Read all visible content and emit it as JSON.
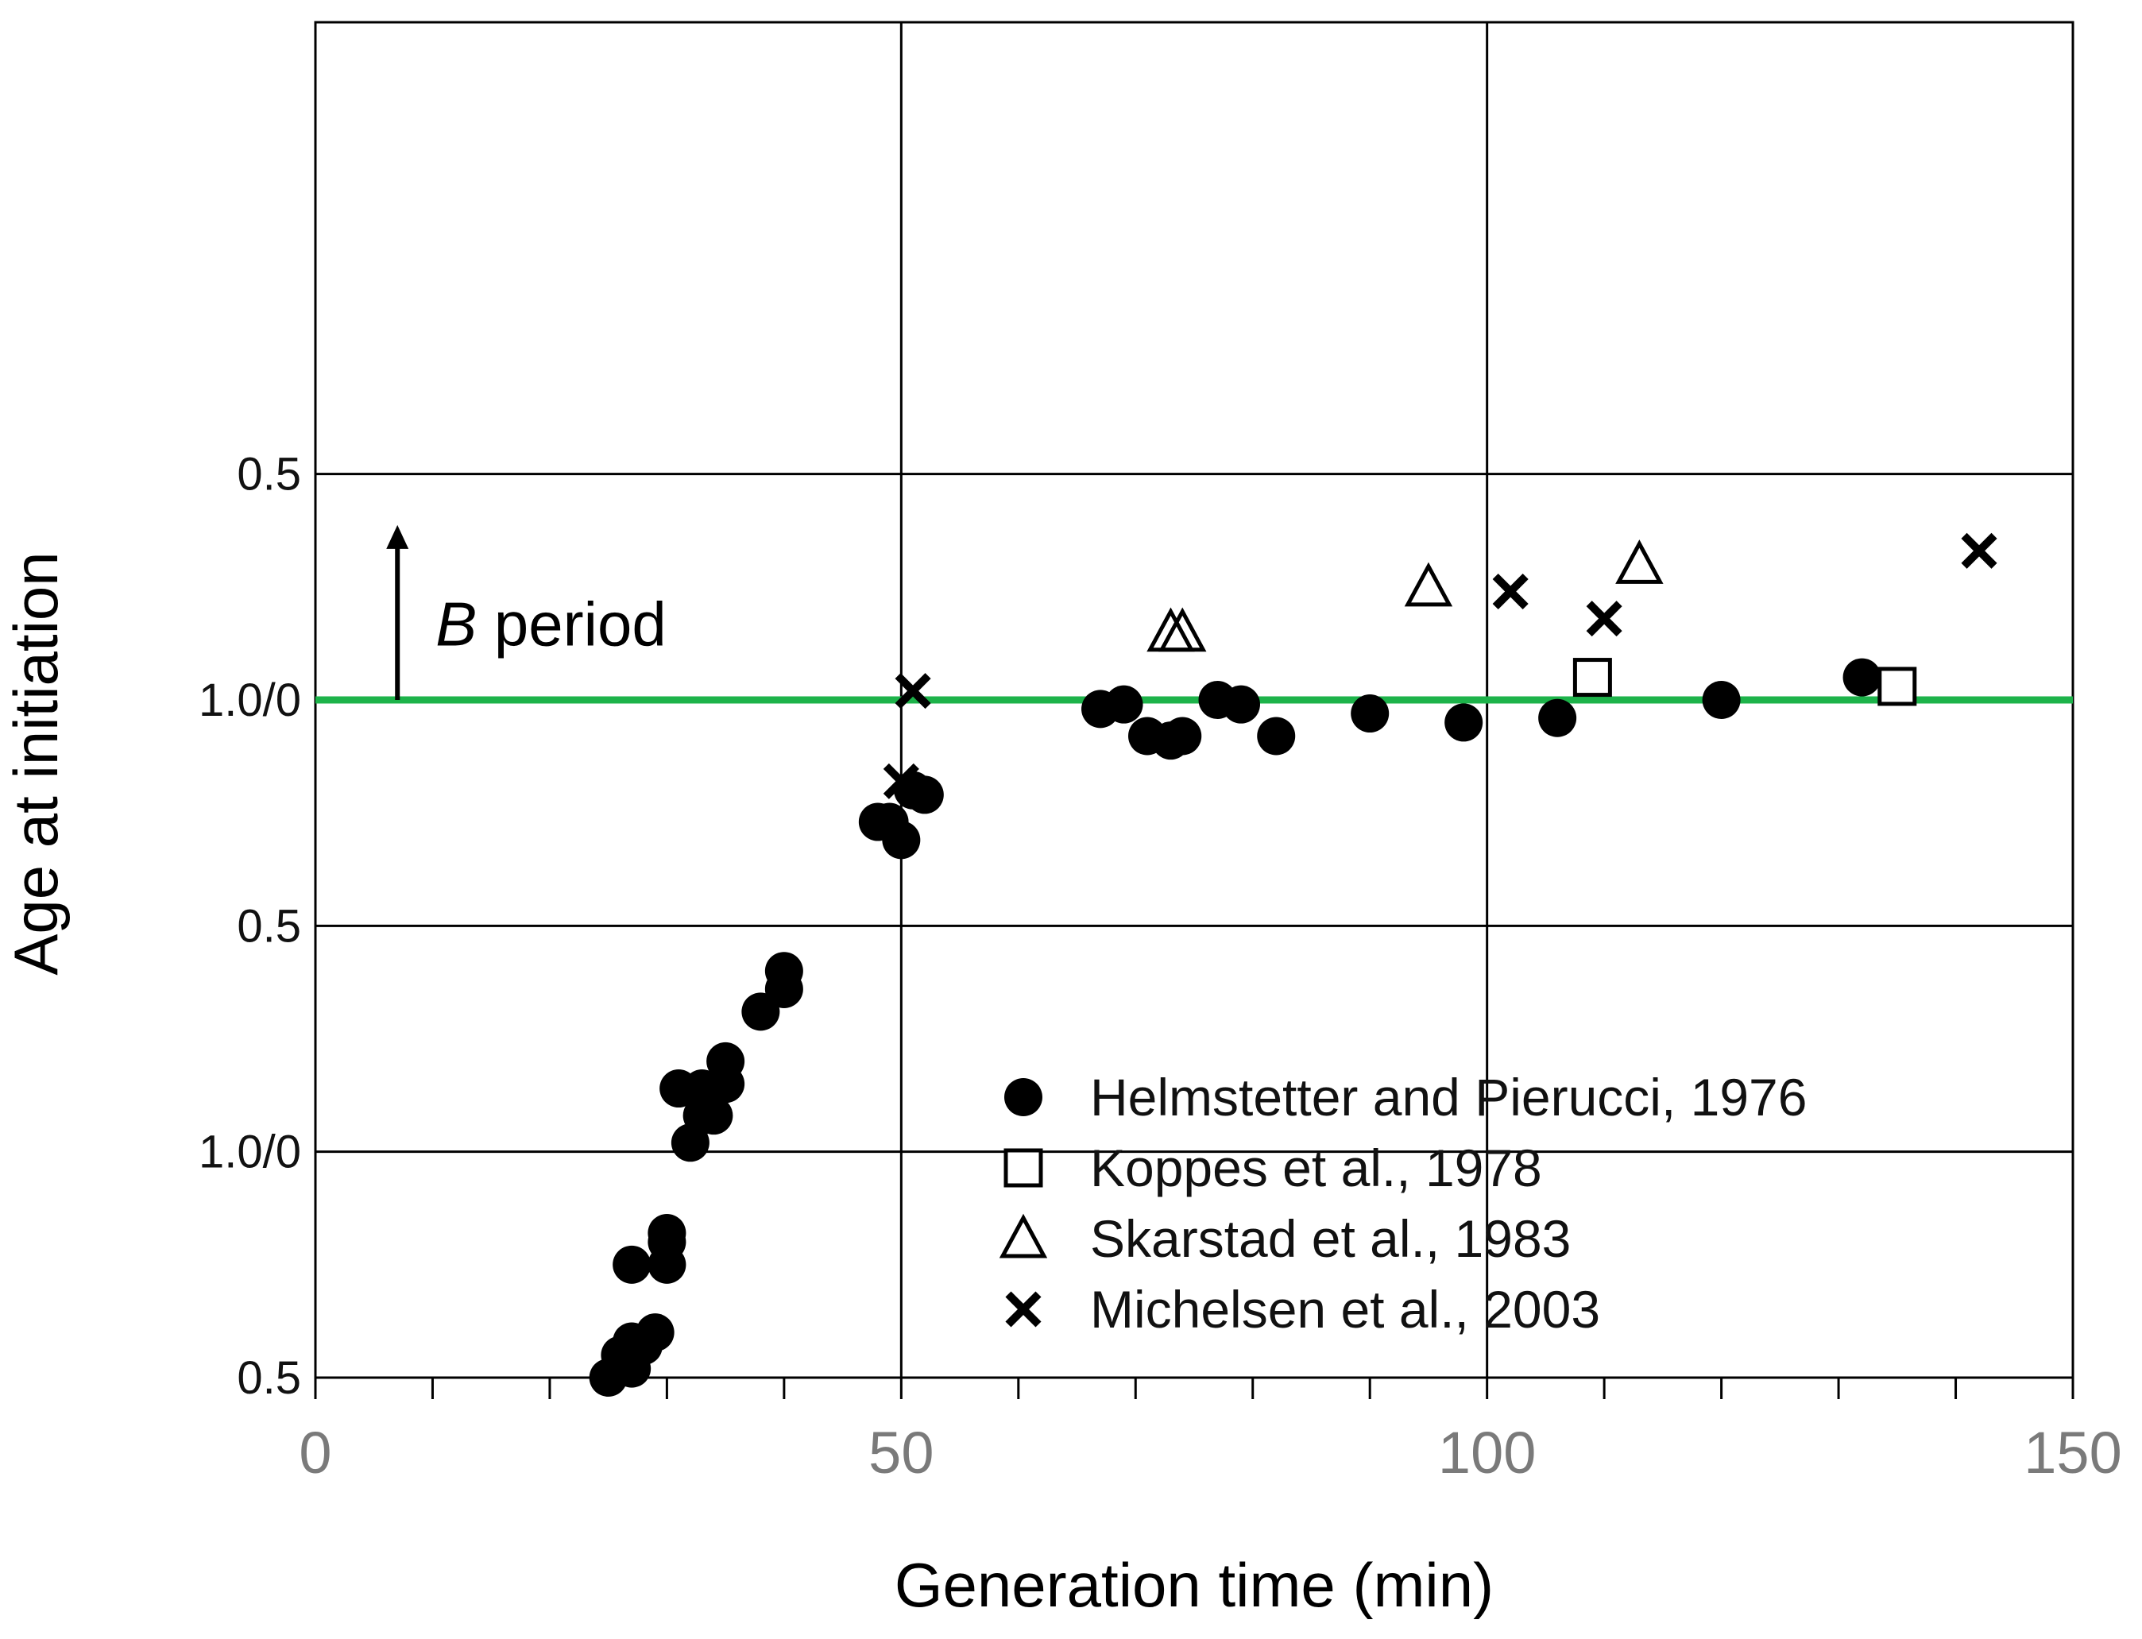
{
  "chart_data": {
    "type": "scatter",
    "title": "",
    "xlabel": "Generation time (min)",
    "ylabel": "Age at initiation",
    "xlim": [
      0,
      150
    ],
    "ylim": [
      0,
      3
    ],
    "x_ticks": [
      0,
      50,
      100,
      150
    ],
    "x_tick_labels": [
      "0",
      "50",
      "100",
      "150"
    ],
    "x_minor_step": 10,
    "y_ticks": [
      0,
      0.5,
      1,
      1.5,
      2
    ],
    "y_tick_labels": [
      "0.5",
      "1.0/0",
      "0.5",
      "1.0/0",
      "0.5"
    ],
    "grid": true,
    "reference_line": {
      "y": 1.5,
      "color": "#1db34a"
    },
    "annotation": {
      "italic": "B",
      "text": " period",
      "x": 7,
      "y_from": 1.5,
      "y_to": 1.88
    },
    "legend_position": "bottom-right",
    "colors": {
      "marker": "#000000",
      "reference_line": "#1db34a",
      "grid": "#000000"
    },
    "series": [
      {
        "name": "Helmstetter and Pierucci, 1976",
        "marker": "filled-circle",
        "points": [
          [
            25,
            0.0
          ],
          [
            26,
            0.05
          ],
          [
            27,
            0.02
          ],
          [
            27,
            0.25
          ],
          [
            27,
            0.08
          ],
          [
            28,
            0.07
          ],
          [
            29,
            0.1
          ],
          [
            30,
            0.25
          ],
          [
            30,
            0.3
          ],
          [
            30,
            0.32
          ],
          [
            31,
            0.64
          ],
          [
            32,
            0.52
          ],
          [
            33,
            0.64
          ],
          [
            33,
            0.58
          ],
          [
            34,
            0.58
          ],
          [
            35,
            0.65
          ],
          [
            35,
            0.7
          ],
          [
            38,
            0.81
          ],
          [
            40,
            0.86
          ],
          [
            40,
            0.9
          ],
          [
            48,
            1.23
          ],
          [
            49,
            1.23
          ],
          [
            50,
            1.19
          ],
          [
            51,
            1.3
          ],
          [
            52,
            1.29
          ],
          [
            67,
            1.48
          ],
          [
            69,
            1.49
          ],
          [
            71,
            1.42
          ],
          [
            73,
            1.41
          ],
          [
            74,
            1.42
          ],
          [
            77,
            1.5
          ],
          [
            79,
            1.49
          ],
          [
            82,
            1.42
          ],
          [
            90,
            1.47
          ],
          [
            98,
            1.45
          ],
          [
            106,
            1.46
          ],
          [
            120,
            1.5
          ],
          [
            132,
            1.55
          ]
        ]
      },
      {
        "name": "Koppes et al., 1978",
        "marker": "open-square",
        "points": [
          [
            109,
            1.55
          ],
          [
            135,
            1.53
          ]
        ]
      },
      {
        "name": "Skarstad et al., 1983",
        "marker": "open-triangle",
        "points": [
          [
            73,
            1.65
          ],
          [
            74,
            1.65
          ],
          [
            95,
            1.75
          ],
          [
            113,
            1.8
          ]
        ]
      },
      {
        "name": "Michelsen et al., 2003",
        "marker": "cross",
        "points": [
          [
            50,
            1.32
          ],
          [
            51,
            1.52
          ],
          [
            102,
            1.74
          ],
          [
            110,
            1.68
          ],
          [
            142,
            1.83
          ]
        ]
      }
    ]
  }
}
